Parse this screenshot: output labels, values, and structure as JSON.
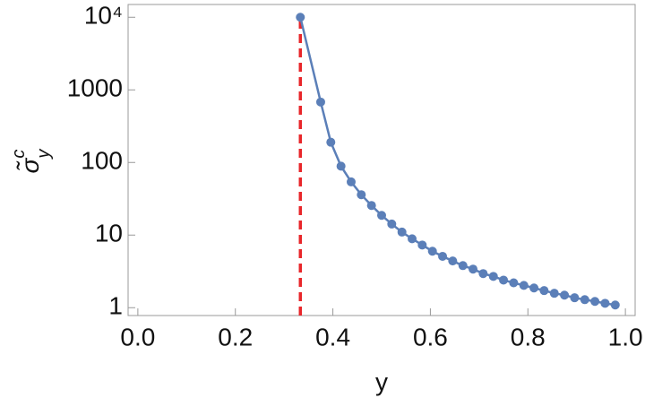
{
  "chart_data": {
    "type": "line",
    "xlabel": "y",
    "ylabel": {
      "base": "σ̃",
      "sup": "c",
      "sub": "y"
    },
    "x": [
      0.3333,
      0.375,
      0.3958,
      0.4167,
      0.4375,
      0.4583,
      0.4792,
      0.5,
      0.5208,
      0.5417,
      0.5625,
      0.5833,
      0.6042,
      0.625,
      0.6458,
      0.6667,
      0.6875,
      0.7083,
      0.7292,
      0.75,
      0.7708,
      0.7917,
      0.8125,
      0.8333,
      0.8542,
      0.875,
      0.8958,
      0.9167,
      0.9375,
      0.9583,
      0.9792
    ],
    "series": [
      {
        "color": "#5b7fb8",
        "values": [
          10000,
          680,
          190,
          89,
          54,
          36,
          25.6,
          18.7,
          14.2,
          11,
          8.9,
          7.3,
          6.0,
          5.1,
          4.4,
          3.8,
          3.4,
          2.95,
          2.7,
          2.4,
          2.2,
          2.03,
          1.87,
          1.72,
          1.58,
          1.49,
          1.37,
          1.29,
          1.22,
          1.15,
          1.09
        ]
      }
    ],
    "vline": {
      "x": 0.3333,
      "color": "#e8262a"
    },
    "xlim": [
      -0.02,
      1.02
    ],
    "ylim": [
      0.78,
      15000
    ],
    "log_y": true,
    "xticks": [
      {
        "value": 0,
        "label": "0.0"
      },
      {
        "value": 0.2,
        "label": "0.2"
      },
      {
        "value": 0.4,
        "label": "0.4"
      },
      {
        "value": 0.6,
        "label": "0.6"
      },
      {
        "value": 0.8,
        "label": "0.8"
      },
      {
        "value": 1,
        "label": "1.0"
      }
    ],
    "yticks": [
      1,
      10,
      100,
      1000,
      {
        "value": 10000,
        "label": "10⁴"
      }
    ]
  }
}
